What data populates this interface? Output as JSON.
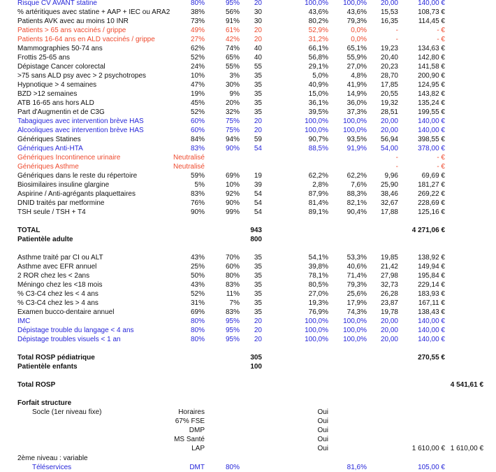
{
  "sections": [
    {
      "rows": [
        {
          "label": "Risque CV AVANT statine",
          "color": "#2626d9",
          "cells": {
            "c1": "80%",
            "c2": "95%",
            "c3": "20",
            "c4": "100,0%",
            "c5": "100,0%",
            "c6": "20,00",
            "c7": "140,00 €"
          }
        },
        {
          "label": "% artéritiques avec statine + AAP + IEC ou ARA2",
          "cells": {
            "c1": "38%",
            "c2": "56%",
            "c3": "30",
            "c4": "43,6%",
            "c5": "43,6%",
            "c6": "15,53",
            "c7": "108,73 €"
          }
        },
        {
          "label": "Patients AVK avec au moins 10 INR",
          "cells": {
            "c1": "73%",
            "c2": "91%",
            "c3": "30",
            "c4": "80,2%",
            "c5": "79,3%",
            "c6": "16,35",
            "c7": "114,45 €"
          }
        },
        {
          "label": "Patients > 65 ans vaccinés / grippe",
          "color": "#ee4a2e",
          "cells": {
            "c1": "49%",
            "c2": "61%",
            "c3": "20",
            "c4": "52,9%",
            "c5": "0,0%",
            "c6": "-",
            "c7": "- €"
          }
        },
        {
          "label": "Patients 16-64 ans en ALD vaccinés / grippe",
          "color": "#ee4a2e",
          "cells": {
            "c1": "27%",
            "c2": "42%",
            "c3": "20",
            "c4": "31,2%",
            "c5": "0,0%",
            "c6": "-",
            "c7": "- €"
          }
        },
        {
          "label": "Mammographies 50-74 ans",
          "cells": {
            "c1": "62%",
            "c2": "74%",
            "c3": "40",
            "c4": "66,1%",
            "c5": "65,1%",
            "c6": "19,23",
            "c7": "134,63 €"
          }
        },
        {
          "label": "Frottis 25-65 ans",
          "cells": {
            "c1": "52%",
            "c2": "65%",
            "c3": "40",
            "c4": "56,8%",
            "c5": "55,9%",
            "c6": "20,40",
            "c7": "142,80 €"
          }
        },
        {
          "label": "Dépistage Cancer colorectal",
          "cells": {
            "c1": "24%",
            "c2": "55%",
            "c3": "55",
            "c4": "29,1%",
            "c5": "27,0%",
            "c6": "20,23",
            "c7": "141,58 €"
          }
        },
        {
          "label": ">75 sans ALD psy avec > 2 psychotropes",
          "cells": {
            "c1": "10%",
            "c2": "3%",
            "c3": "35",
            "c4": "5,0%",
            "c5": "4,8%",
            "c6": "28,70",
            "c7": "200,90 €"
          }
        },
        {
          "label": "Hypnotique > 4 semaines",
          "cells": {
            "c1": "47%",
            "c2": "30%",
            "c3": "35",
            "c4": "40,9%",
            "c5": "41,9%",
            "c6": "17,85",
            "c7": "124,95 €"
          }
        },
        {
          "label": "BZD >12 semaines",
          "cells": {
            "c1": "19%",
            "c2": "9%",
            "c3": "35",
            "c4": "15,0%",
            "c5": "14,9%",
            "c6": "20,55",
            "c7": "143,82 €"
          }
        },
        {
          "label": "ATB 16-65 ans hors ALD",
          "cells": {
            "c1": "45%",
            "c2": "20%",
            "c3": "35",
            "c4": "36,1%",
            "c5": "36,0%",
            "c6": "19,32",
            "c7": "135,24 €"
          }
        },
        {
          "label": "Part d'Augmentin et de C3G",
          "cells": {
            "c1": "52%",
            "c2": "32%",
            "c3": "35",
            "c4": "39,5%",
            "c5": "37,3%",
            "c6": "28,51",
            "c7": "199,55 €"
          }
        },
        {
          "label": "Tabagiques avec intervention brève HAS",
          "color": "#2626d9",
          "cells": {
            "c1": "60%",
            "c2": "75%",
            "c3": "20",
            "c4": "100,0%",
            "c5": "100,0%",
            "c6": "20,00",
            "c7": "140,00 €"
          }
        },
        {
          "label": "Alcooliques avec intervention brève HAS",
          "color": "#2626d9",
          "cells": {
            "c1": "60%",
            "c2": "75%",
            "c3": "20",
            "c4": "100,0%",
            "c5": "100,0%",
            "c6": "20,00",
            "c7": "140,00 €"
          }
        },
        {
          "label": "Génériques Statines",
          "cells": {
            "c1": "84%",
            "c2": "94%",
            "c3": "59",
            "c4": "90,7%",
            "c5": "93,5%",
            "c6": "56,94",
            "c7": "398,55 €"
          }
        },
        {
          "label": "Génériques Anti-HTA",
          "color": "#2626d9",
          "cells": {
            "c1": "83%",
            "c2": "90%",
            "c3": "54",
            "c4": "88,5%",
            "c5": "91,9%",
            "c6": "54,00",
            "c7": "378,00 €"
          }
        },
        {
          "label": "Génériques Incontinence urinaire",
          "color": "#ee4a2e",
          "cells": {
            "c1": "Neutralisé",
            "c6": "-",
            "c7": "- €"
          }
        },
        {
          "label": "Génériques Asthme",
          "color": "#ee4a2e",
          "cells": {
            "c1": "Neutralisé",
            "c6": "-",
            "c7": "- €"
          }
        },
        {
          "label": "Génériques dans le reste du répertoire",
          "cells": {
            "c1": "59%",
            "c2": "69%",
            "c3": "19",
            "c4": "62,2%",
            "c5": "62,2%",
            "c6": "9,96",
            "c7": "69,69 €"
          }
        },
        {
          "label": "Biosimilaires insuline glargine",
          "cells": {
            "c1": "5%",
            "c2": "10%",
            "c3": "39",
            "c4": "2,8%",
            "c5": "7,6%",
            "c6": "25,90",
            "c7": "181,27 €"
          }
        },
        {
          "label": "Aspirine / Anti-agrégants plaquettaires",
          "cells": {
            "c1": "83%",
            "c2": "92%",
            "c3": "54",
            "c4": "87,9%",
            "c5": "88,3%",
            "c6": "38,46",
            "c7": "269,22 €"
          }
        },
        {
          "label": "DNID traités par metformine",
          "cells": {
            "c1": "76%",
            "c2": "90%",
            "c3": "54",
            "c4": "81,4%",
            "c5": "82,1%",
            "c6": "32,67",
            "c7": "228,69 €"
          }
        },
        {
          "label": "TSH seule / TSH + T4",
          "cells": {
            "c1": "90%",
            "c2": "99%",
            "c3": "54",
            "c4": "89,1%",
            "c5": "90,4%",
            "c6": "17,88",
            "c7": "125,16 €"
          }
        }
      ]
    },
    {
      "rows": [
        {
          "label": "TOTAL",
          "bold": true,
          "cells": {
            "c3": "943",
            "c7": "4 271,06 €"
          }
        },
        {
          "label": "Patientèle adulte",
          "bold": true,
          "cells": {
            "c3": "800"
          }
        }
      ]
    },
    {
      "rows": [
        {
          "label": "Asthme traité par CI ou ALT",
          "cells": {
            "c1": "43%",
            "c2": "70%",
            "c3": "35",
            "c4": "54,1%",
            "c5": "53,3%",
            "c6": "19,85",
            "c7": "138,92 €"
          }
        },
        {
          "label": "Asthme avec EFR annuel",
          "cells": {
            "c1": "25%",
            "c2": "60%",
            "c3": "35",
            "c4": "39,8%",
            "c5": "40,6%",
            "c6": "21,42",
            "c7": "149,94 €"
          }
        },
        {
          "label": "2 ROR chez les < 2ans",
          "cells": {
            "c1": "50%",
            "c2": "80%",
            "c3": "35",
            "c4": "78,1%",
            "c5": "71,4%",
            "c6": "27,98",
            "c7": "195,84 €"
          }
        },
        {
          "label": "Méningo chez les <18 mois",
          "cells": {
            "c1": "43%",
            "c2": "83%",
            "c3": "35",
            "c4": "80,5%",
            "c5": "79,3%",
            "c6": "32,73",
            "c7": "229,14 €"
          }
        },
        {
          "label": "% C3-C4 chez les < 4 ans",
          "cells": {
            "c1": "52%",
            "c2": "11%",
            "c3": "35",
            "c4": "27,0%",
            "c5": "25,6%",
            "c6": "26,28",
            "c7": "183,93 €"
          }
        },
        {
          "label": "% C3-C4 chez les > 4 ans",
          "cells": {
            "c1": "31%",
            "c2": "7%",
            "c3": "35",
            "c4": "19,3%",
            "c5": "17,9%",
            "c6": "23,87",
            "c7": "167,11 €"
          }
        },
        {
          "label": "Examen bucco-dentaire annuel",
          "cells": {
            "c1": "69%",
            "c2": "83%",
            "c3": "35",
            "c4": "76,9%",
            "c5": "74,3%",
            "c6": "19,78",
            "c7": "138,43 €"
          }
        },
        {
          "label": "IMC",
          "color": "#2626d9",
          "cells": {
            "c1": "80%",
            "c2": "95%",
            "c3": "20",
            "c4": "100,0%",
            "c5": "100,0%",
            "c6": "20,00",
            "c7": "140,00 €"
          }
        },
        {
          "label": "Dépistage trouble du langage < 4 ans",
          "color": "#2626d9",
          "cells": {
            "c1": "80%",
            "c2": "95%",
            "c3": "20",
            "c4": "100,0%",
            "c5": "100,0%",
            "c6": "20,00",
            "c7": "140,00 €"
          }
        },
        {
          "label": "Dépistage troubles visuels < 1 an",
          "color": "#2626d9",
          "cells": {
            "c1": "80%",
            "c2": "95%",
            "c3": "20",
            "c4": "100,0%",
            "c5": "100,0%",
            "c6": "20,00",
            "c7": "140,00 €"
          }
        }
      ]
    },
    {
      "rows": [
        {
          "label": "Total ROSP pédiatrique",
          "bold": true,
          "cells": {
            "c3": "305",
            "c7": "270,55 €"
          }
        },
        {
          "label": "Patientèle enfants",
          "bold": true,
          "cells": {
            "c3": "100"
          }
        }
      ]
    },
    {
      "rows": [
        {
          "label": "Total ROSP",
          "bold": true,
          "cells": {
            "c8": "4 541,61 €"
          }
        }
      ]
    },
    {
      "rows": [
        {
          "label": "Forfait structure",
          "bold": true,
          "cells": {}
        },
        {
          "label": "Socle (1er niveau fixe)",
          "level": 2,
          "cells": {
            "c1": "Horaires",
            "c4": "Oui"
          }
        },
        {
          "cells": {
            "c1": "67%  FSE",
            "c4": "Oui"
          }
        },
        {
          "cells": {
            "c1": "DMP",
            "c4": "Oui"
          }
        },
        {
          "cells": {
            "c1": "MS Santé",
            "c4": "Oui"
          }
        },
        {
          "cells": {
            "c1": "LAP",
            "c4": "Oui",
            "c7": "1 610,00 €",
            "c8": "1 610,00 €"
          }
        },
        {
          "label": "2ème niveau : variable",
          "cells": {}
        },
        {
          "label": "Téléservices",
          "level": 2,
          "color": "#2626d9",
          "cells": {
            "c1": "DMT",
            "c2": "80%",
            "c5": "81,6%",
            "c7": "105,00 €"
          }
        }
      ]
    }
  ]
}
